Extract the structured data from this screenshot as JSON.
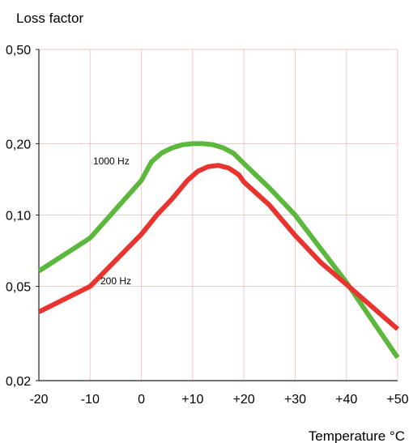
{
  "chart_data": {
    "type": "line",
    "ylabel": "Loss factor",
    "xlabel": "Temperature °C",
    "x_ticks": [
      -20,
      -10,
      0,
      10,
      20,
      30,
      40,
      50
    ],
    "x_tick_labels": [
      "-20",
      "-10",
      "0",
      "+10",
      "+20",
      "+30",
      "+40",
      "+50"
    ],
    "y_ticks": [
      0.02,
      0.05,
      0.1,
      0.2,
      0.5
    ],
    "y_tick_labels": [
      "0,02",
      "0,05",
      "0,10",
      "0,20",
      "0,50"
    ],
    "xlim": [
      -20,
      50
    ],
    "ylim": [
      0.02,
      0.5
    ],
    "y_scale": "log",
    "grid": true,
    "grid_color": "#f4c6c6",
    "series": [
      {
        "name": "1000 Hz",
        "color": "#5cb83c",
        "x": [
          -20,
          -10,
          0,
          2,
          4,
          6,
          8,
          10,
          12,
          14,
          16,
          18,
          20,
          25,
          30,
          35,
          40,
          45,
          50
        ],
        "y": [
          0.058,
          0.08,
          0.14,
          0.168,
          0.183,
          0.192,
          0.198,
          0.2,
          0.2,
          0.198,
          0.192,
          0.182,
          0.165,
          0.13,
          0.1,
          0.072,
          0.052,
          0.036,
          0.025
        ]
      },
      {
        "name": "200 Hz",
        "color": "#e8332f",
        "x": [
          -20,
          -10,
          0,
          3,
          6,
          9,
          11,
          13,
          15,
          17,
          19,
          20,
          25,
          30,
          35,
          40,
          45,
          50
        ],
        "y": [
          0.039,
          0.05,
          0.083,
          0.1,
          0.117,
          0.14,
          0.153,
          0.16,
          0.162,
          0.158,
          0.148,
          0.138,
          0.11,
          0.082,
          0.063,
          0.051,
          0.041,
          0.033
        ]
      }
    ]
  }
}
